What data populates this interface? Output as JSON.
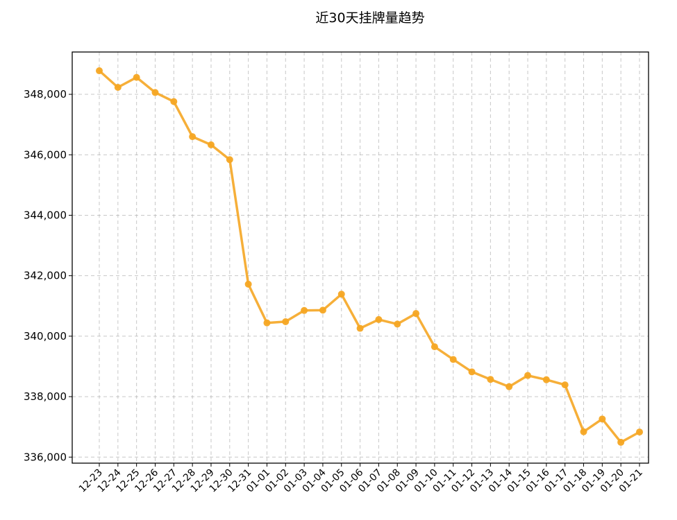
{
  "chart_data": {
    "type": "line",
    "title": "近30天挂牌量趋势",
    "xlabel": "",
    "ylabel": "",
    "grid": true,
    "ylim": [
      335800,
      349400
    ],
    "y_ticks": [
      336000,
      338000,
      340000,
      342000,
      344000,
      346000,
      348000
    ],
    "y_tick_labels": [
      "336,000",
      "338,000",
      "340,000",
      "342,000",
      "344,000",
      "346,000",
      "348,000"
    ],
    "categories": [
      "12-23",
      "12-24",
      "12-25",
      "12-26",
      "12-27",
      "12-28",
      "12-29",
      "12-30",
      "12-31",
      "01-01",
      "01-02",
      "01-03",
      "01-04",
      "01-05",
      "01-06",
      "01-07",
      "01-08",
      "01-09",
      "01-10",
      "01-11",
      "01-12",
      "01-13",
      "01-14",
      "01-15",
      "01-16",
      "01-17",
      "01-18",
      "01-19",
      "01-20",
      "01-21"
    ],
    "series": [
      {
        "name": "",
        "color": "#f5a623",
        "values": [
          348780,
          348230,
          348560,
          348060,
          347760,
          346600,
          346330,
          345840,
          341720,
          340440,
          340480,
          340850,
          340860,
          341390,
          340260,
          340550,
          340400,
          340750,
          339650,
          339230,
          338820,
          338570,
          338330,
          338700,
          338560,
          338390,
          336840,
          337260,
          336490,
          336830
        ]
      }
    ]
  }
}
